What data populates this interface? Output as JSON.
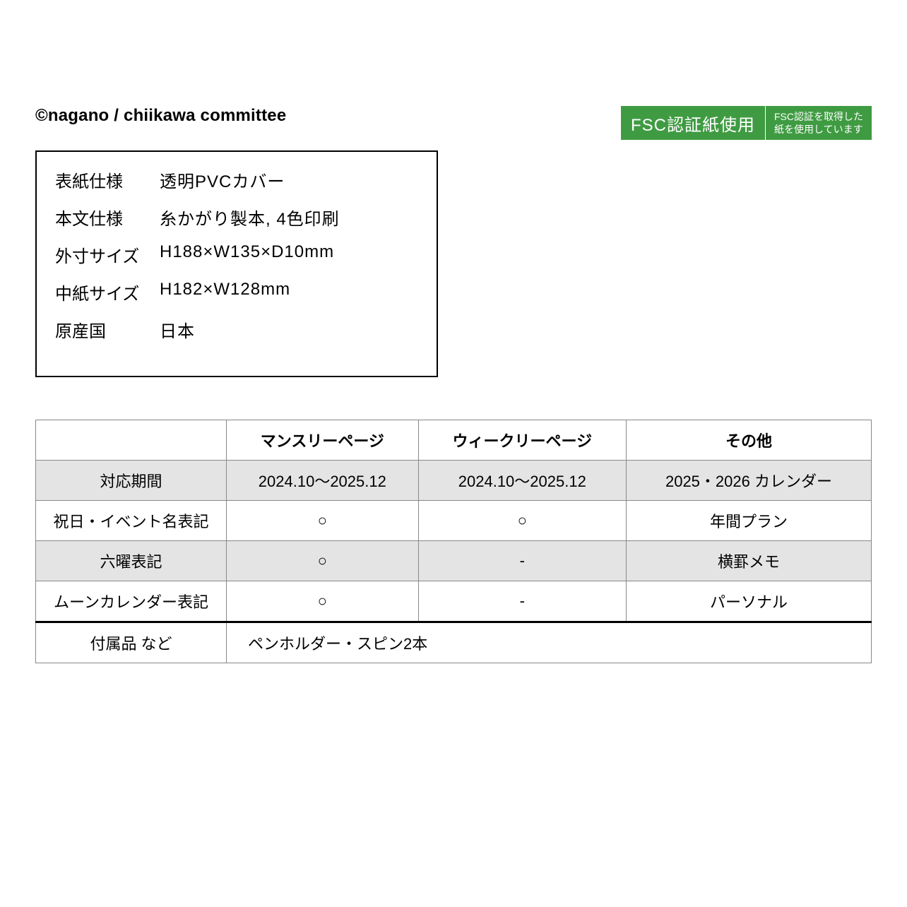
{
  "copyright": "©nagano / chiikawa committee",
  "fsc_badge": {
    "left": "FSC認証紙使用",
    "right_line1": "FSC認証を取得した",
    "right_line2": "紙を使用しています",
    "bg_color": "#3f9b42",
    "text_color": "#ffffff"
  },
  "spec_box": {
    "rows": [
      {
        "label": "表紙仕様",
        "value": "透明PVCカバー"
      },
      {
        "label": "本文仕様",
        "value": "糸かがり製本, 4色印刷"
      },
      {
        "label": "外寸サイズ",
        "value": "H188×W135×D10mm"
      },
      {
        "label": "中紙サイズ",
        "value": "H182×W128mm"
      },
      {
        "label": "原産国",
        "value": "日本"
      }
    ]
  },
  "comparison_table": {
    "header": {
      "blank": "",
      "col1": "マンスリーページ",
      "col2": "ウィークリーページ",
      "col3": "その他"
    },
    "rows": [
      {
        "label": "対応期間",
        "c1": "2024.10～2025.12",
        "c2": "2024.10～2025.12",
        "c3": "2025・2026 カレンダー",
        "gray": true
      },
      {
        "label": "祝日・イベント名表記",
        "c1": "○",
        "c2": "○",
        "c3": "年間プラン",
        "gray": false
      },
      {
        "label": "六曜表記",
        "c1": "○",
        "c2": "-",
        "c3": "横罫メモ",
        "gray": true
      },
      {
        "label": "ムーンカレンダー表記",
        "c1": "○",
        "c2": "-",
        "c3": "パーソナル",
        "gray": false
      }
    ],
    "attachments": {
      "label": "付属品 など",
      "value": "ペンホルダー・スピン2本"
    }
  },
  "colors": {
    "border": "#000000",
    "cell_border": "#888888",
    "gray_bg": "#e4e4e4",
    "white": "#ffffff"
  }
}
